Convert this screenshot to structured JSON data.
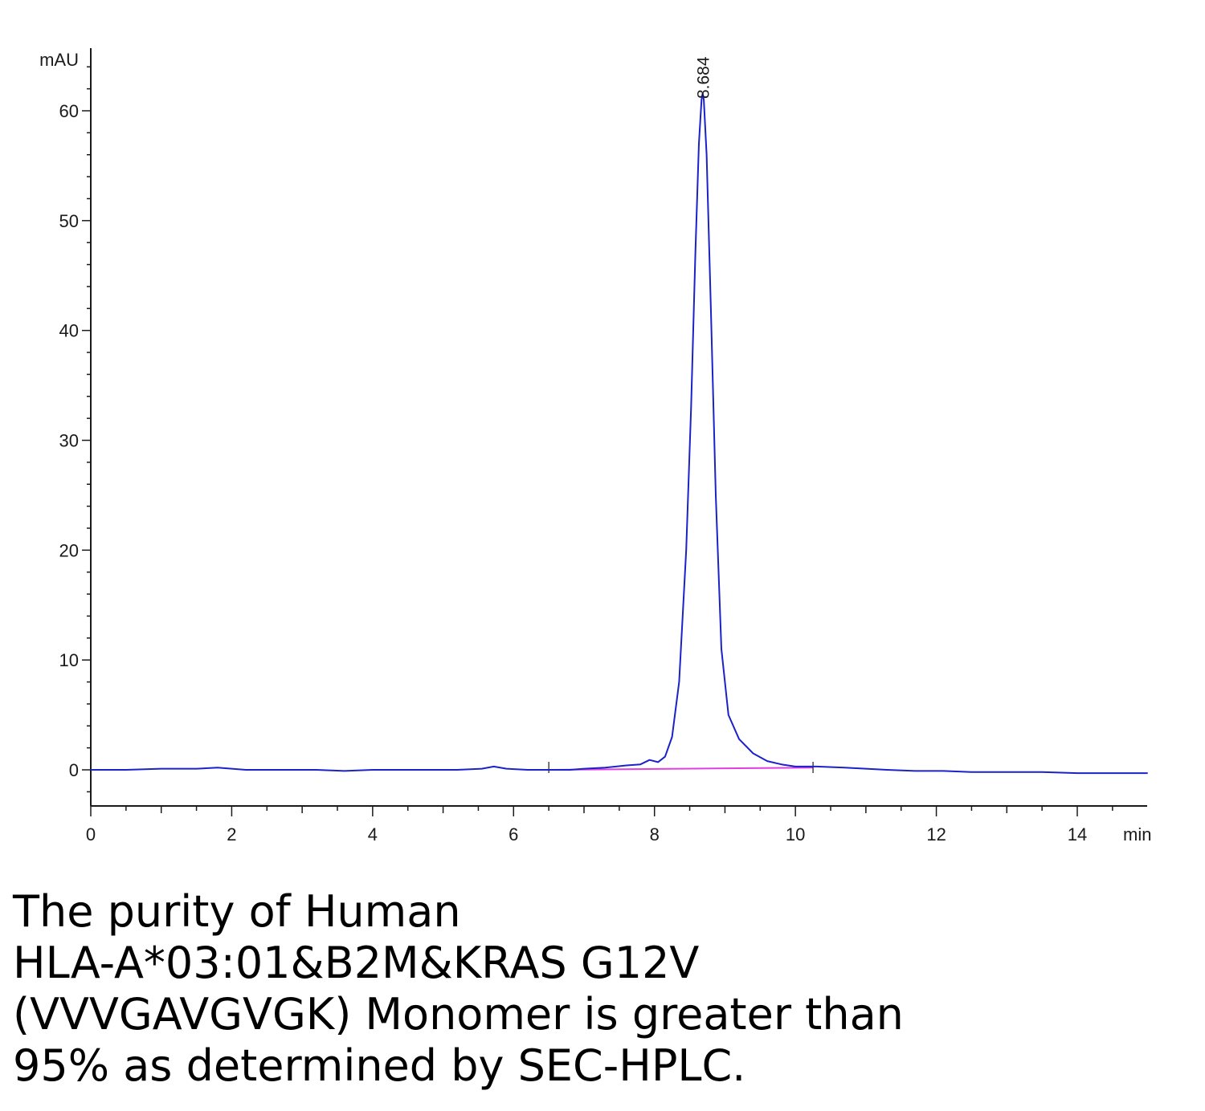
{
  "chart_data": {
    "type": "line",
    "title": "",
    "xlabel": "min",
    "ylabel": "mAU",
    "xlim": [
      0,
      15
    ],
    "ylim": [
      -3.3,
      65
    ],
    "x_ticks": [
      0,
      2,
      4,
      6,
      8,
      10,
      12,
      14
    ],
    "y_ticks": [
      0,
      10,
      20,
      30,
      40,
      50,
      60
    ],
    "grid": false,
    "series": [
      {
        "color": "#1a22c8",
        "x": [
          0,
          0.5,
          1.0,
          1.5,
          1.8,
          2.2,
          2.8,
          3.2,
          3.6,
          4.0,
          4.6,
          5.2,
          5.55,
          5.72,
          5.9,
          6.2,
          6.5,
          6.8,
          7.0,
          7.3,
          7.6,
          7.8,
          7.93,
          8.05,
          8.15,
          8.25,
          8.35,
          8.45,
          8.52,
          8.58,
          8.63,
          8.668,
          8.684,
          8.7,
          8.74,
          8.8,
          8.87,
          8.95,
          9.05,
          9.2,
          9.4,
          9.6,
          9.8,
          10.0,
          10.3,
          10.7,
          11.0,
          11.3,
          11.7,
          12.1,
          12.5,
          13.0,
          13.5,
          14.0,
          14.5,
          15.0
        ],
        "y": [
          0.0,
          0.0,
          0.1,
          0.1,
          0.2,
          0.0,
          0.0,
          0.0,
          -0.1,
          0.0,
          0.0,
          0.0,
          0.1,
          0.3,
          0.1,
          0.0,
          0.0,
          0.0,
          0.1,
          0.2,
          0.4,
          0.5,
          0.9,
          0.7,
          1.2,
          3.0,
          8.0,
          20.0,
          33.0,
          47.0,
          57.0,
          61.0,
          61.6,
          61.0,
          56.0,
          42.0,
          25.0,
          11.0,
          5.0,
          2.8,
          1.5,
          0.8,
          0.5,
          0.3,
          0.3,
          0.2,
          0.1,
          0.0,
          -0.1,
          -0.1,
          -0.2,
          -0.2,
          -0.2,
          -0.3,
          -0.3,
          -0.3
        ]
      }
    ],
    "baseline": {
      "color": "#e040e0",
      "x": [
        6.5,
        10.25
      ],
      "y": [
        0.0,
        0.2
      ]
    },
    "baseline_markers": [
      6.5,
      10.25
    ],
    "annotations": [
      {
        "text": "8.684",
        "x": 8.684,
        "y": 61.6
      }
    ]
  },
  "caption": {
    "lines": [
      "The purity of Human",
      "HLA-A*03:01&B2M&KRAS G12V",
      "(VVVGAVGVGK) Monomer is greater than",
      "95% as determined by SEC-HPLC."
    ]
  }
}
